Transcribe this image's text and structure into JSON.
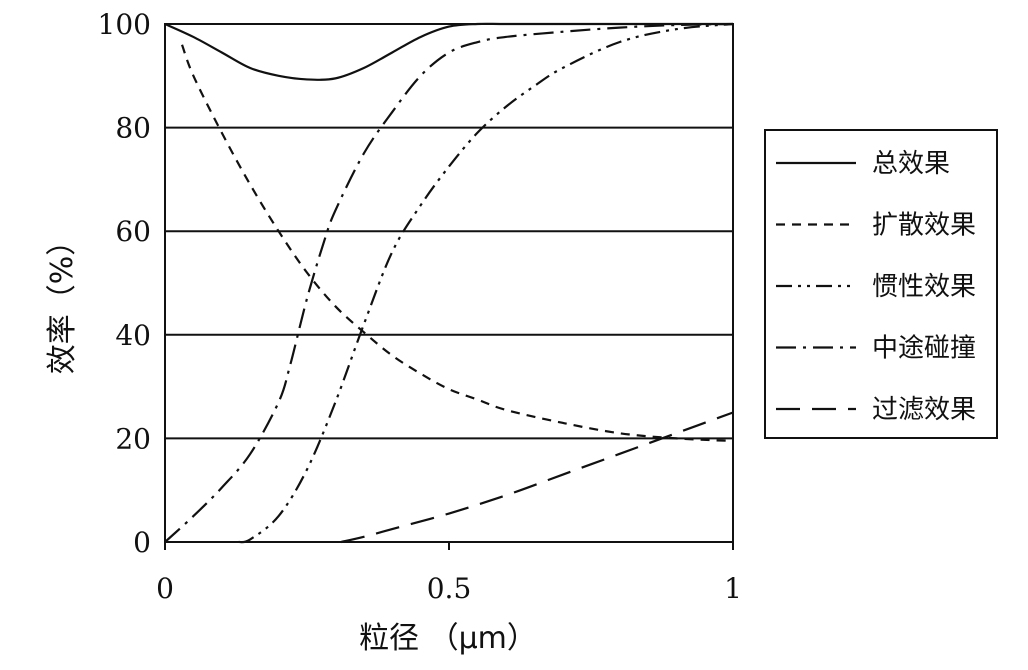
{
  "chart_data": {
    "type": "line",
    "xlabel": "粒径 （μm）",
    "ylabel": "效率（%）",
    "xlim": [
      0,
      1
    ],
    "ylim": [
      0,
      100
    ],
    "x_ticks": [
      "0",
      "0.5",
      "1"
    ],
    "y_ticks": [
      "0",
      "20",
      "40",
      "60",
      "80",
      "100"
    ],
    "grid": "horizontal",
    "legend_position": "right",
    "colors": {
      "line": "#111111",
      "grid": "#111111",
      "background": "#ffffff"
    },
    "series": [
      {
        "name": "总效果",
        "style": "solid",
        "x": [
          0,
          0.05,
          0.1,
          0.15,
          0.2,
          0.25,
          0.3,
          0.35,
          0.4,
          0.45,
          0.5,
          0.55,
          0.6,
          0.7,
          0.8,
          0.9,
          1.0
        ],
        "y": [
          100,
          97.5,
          94.5,
          91.5,
          90,
          89.3,
          89.5,
          91.5,
          94.5,
          97.5,
          99.5,
          100,
          100,
          100,
          100,
          100,
          100
        ]
      },
      {
        "name": "扩散效果",
        "style": "short-dash",
        "x": [
          0.03,
          0.05,
          0.1,
          0.15,
          0.2,
          0.25,
          0.3,
          0.35,
          0.4,
          0.45,
          0.5,
          0.55,
          0.6,
          0.7,
          0.8,
          0.9,
          1.0
        ],
        "y": [
          96,
          90,
          79,
          69,
          60,
          52,
          45.5,
          40.5,
          36,
          32.5,
          29.5,
          27.5,
          25.5,
          23,
          21,
          20,
          19.5
        ]
      },
      {
        "name": "惯性效果",
        "style": "dash-dot-dot",
        "x": [
          0.13,
          0.15,
          0.2,
          0.25,
          0.3,
          0.35,
          0.4,
          0.45,
          0.5,
          0.55,
          0.6,
          0.65,
          0.7,
          0.8,
          0.9,
          1.0
        ],
        "y": [
          0,
          0.5,
          5,
          14,
          27,
          42,
          56,
          65,
          72.5,
          79,
          84,
          88,
          91.5,
          96.5,
          99,
          100
        ]
      },
      {
        "name": "中途碰撞",
        "style": "dash-dot",
        "x": [
          0,
          0.05,
          0.1,
          0.15,
          0.2,
          0.22,
          0.25,
          0.28,
          0.3,
          0.35,
          0.4,
          0.45,
          0.5,
          0.55,
          0.6,
          0.7,
          0.8,
          0.9,
          1.0
        ],
        "y": [
          0,
          5,
          10.5,
          17,
          27,
          34,
          47,
          58,
          64,
          75,
          83,
          90,
          94.5,
          96.5,
          97.5,
          98.5,
          99.3,
          99.8,
          100
        ]
      },
      {
        "name": "过滤效果",
        "style": "long-dash",
        "x": [
          0.31,
          0.35,
          0.4,
          0.5,
          0.6,
          0.7,
          0.8,
          0.9,
          1.0
        ],
        "y": [
          0,
          1,
          2.5,
          5.5,
          9,
          13,
          17,
          21,
          25
        ]
      }
    ]
  }
}
